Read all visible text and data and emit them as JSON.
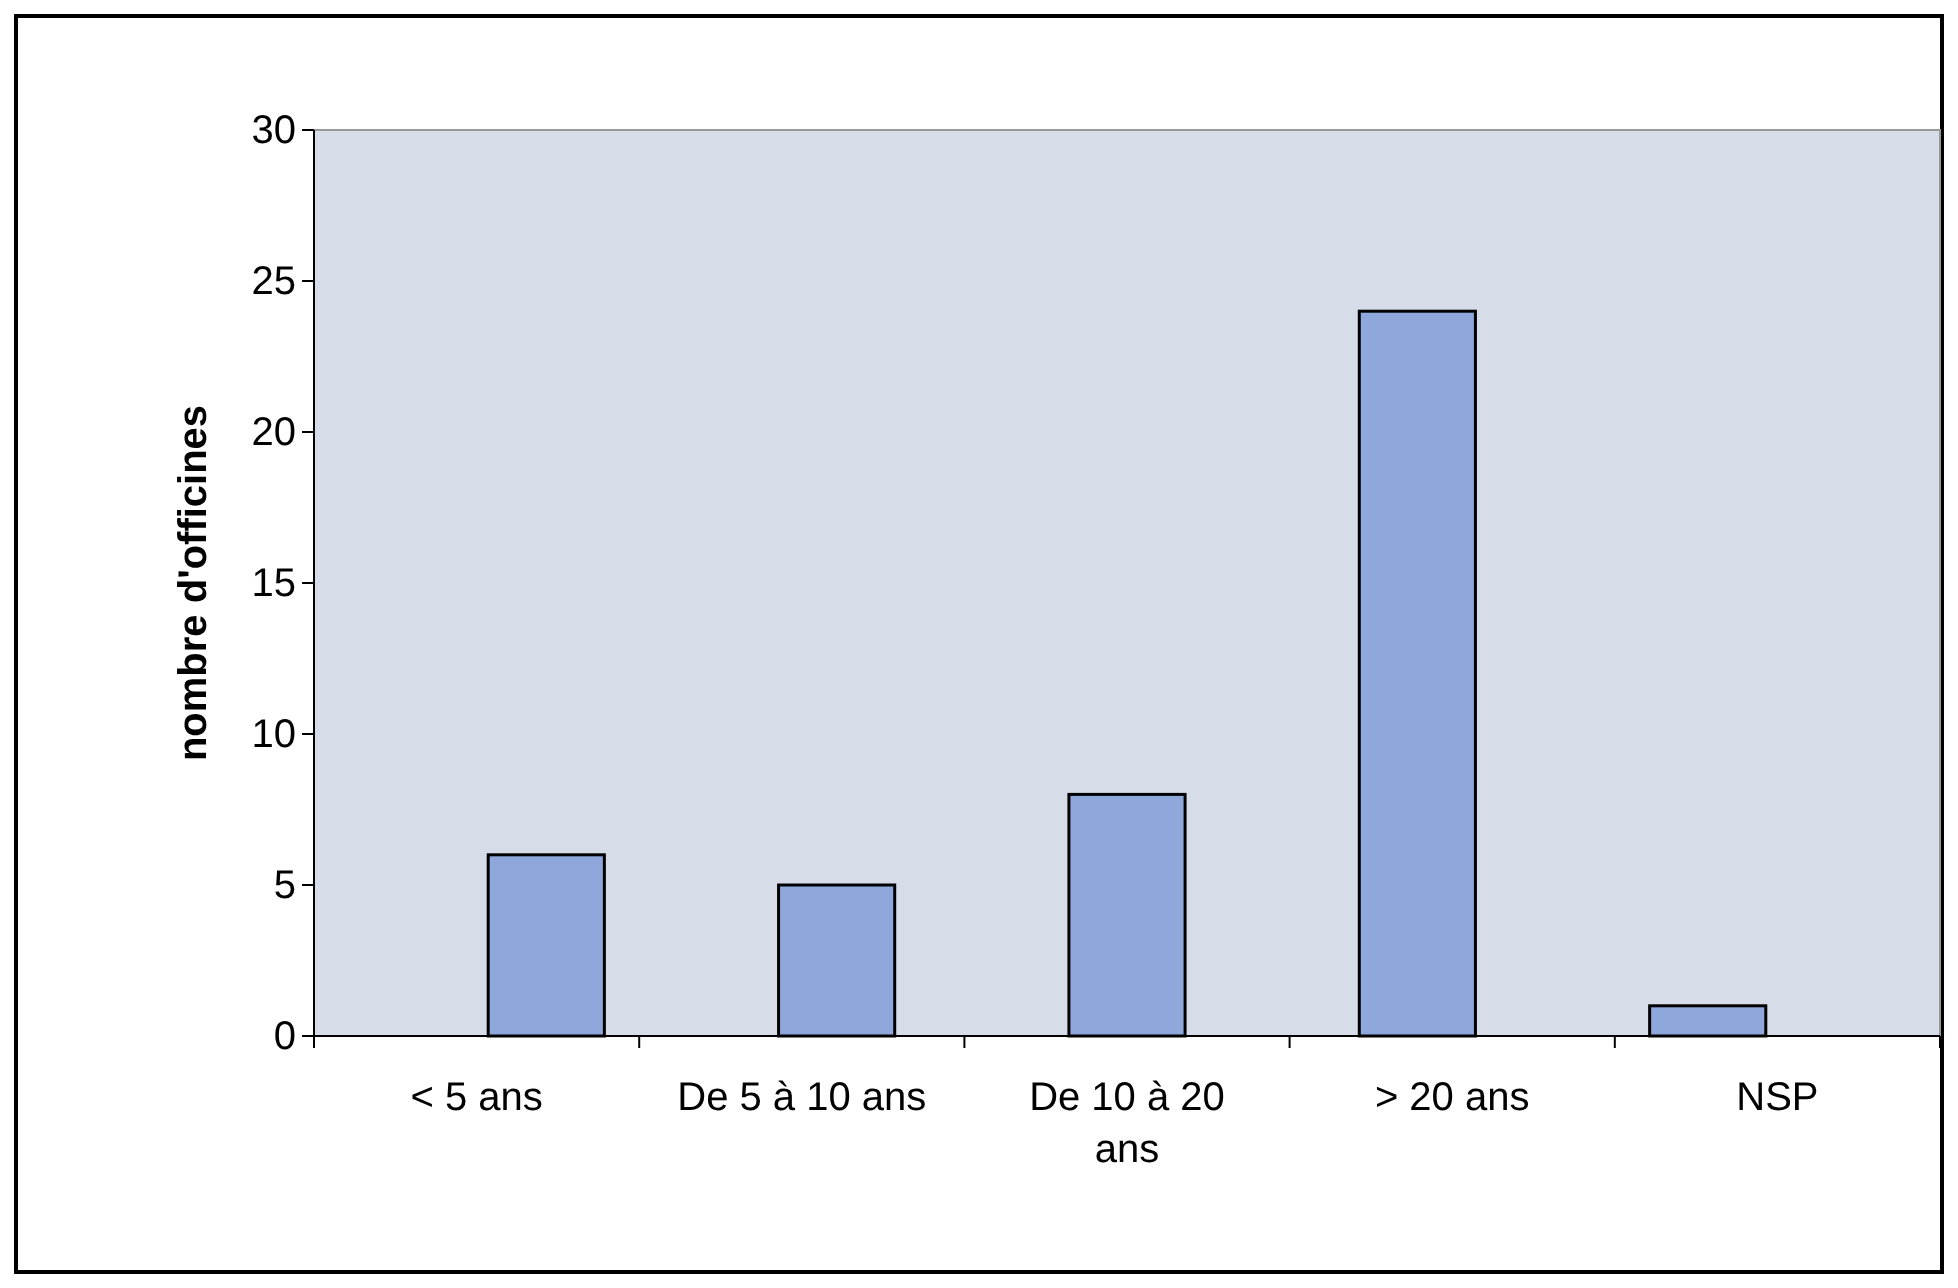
{
  "chart_data": {
    "type": "bar",
    "ylabel": "nombre d'officines",
    "categories": [
      "< 5 ans",
      "De 5 à 10 ans",
      "De 10 à 20 ans",
      "> 20 ans",
      "NSP"
    ],
    "values": [
      6,
      5,
      8,
      24,
      1
    ],
    "color": "#8fa8dc",
    "ylim": [
      0,
      30
    ],
    "yticks": [
      0,
      5,
      10,
      15,
      20,
      25,
      30
    ],
    "grid": false
  }
}
